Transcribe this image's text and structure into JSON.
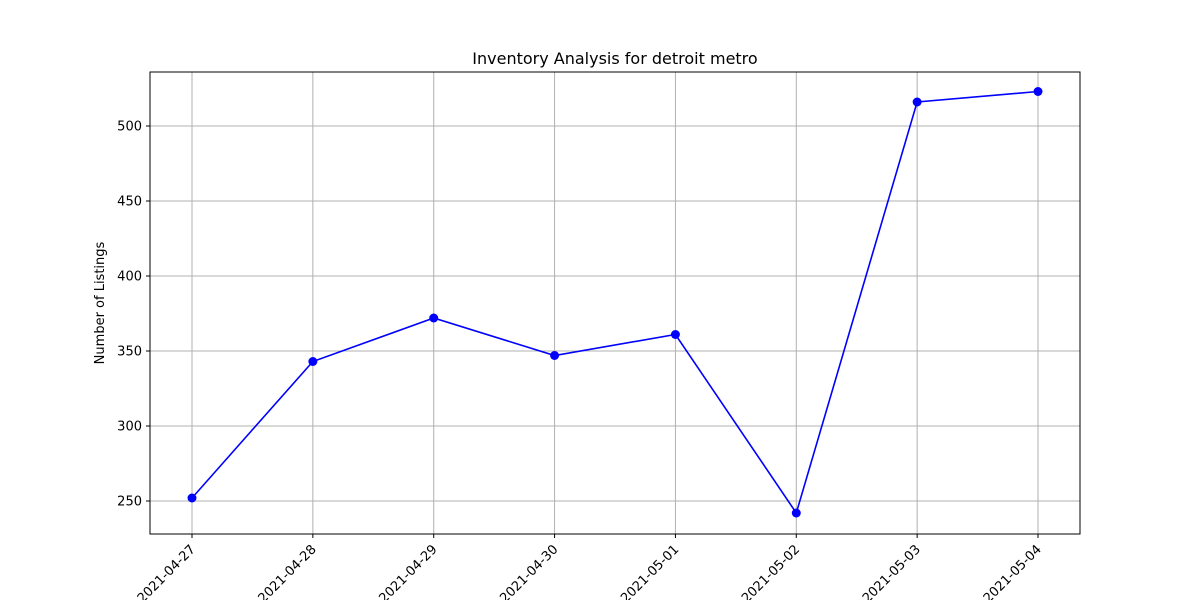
{
  "chart_data": {
    "type": "line",
    "title": "Inventory Analysis for detroit metro",
    "xlabel": "",
    "ylabel": "Number of Listings",
    "x": [
      "2021-04-27",
      "2021-04-28",
      "2021-04-29",
      "2021-04-30",
      "2021-05-01",
      "2021-05-02",
      "2021-05-03",
      "2021-05-04"
    ],
    "series": [
      {
        "values": [
          252,
          343,
          372,
          347,
          361,
          242,
          516,
          523
        ],
        "color": "#0000ff",
        "marker": "circle"
      }
    ],
    "ylim": [
      228,
      536
    ],
    "yticks": [
      250,
      300,
      350,
      400,
      450,
      500
    ],
    "grid": true,
    "legend": "none"
  }
}
